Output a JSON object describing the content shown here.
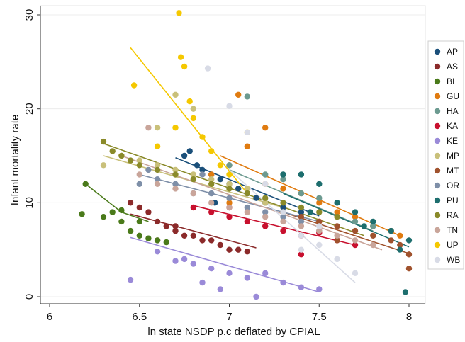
{
  "chart_data": {
    "type": "scatter",
    "xlabel": "ln state NSDP p.c deflated by CPIAL",
    "ylabel": "Infant mortality rate",
    "xlim": [
      5.95,
      8.05
    ],
    "ylim": [
      -1.5,
      31
    ],
    "x_ticks": [
      "6",
      "6.5",
      "7",
      "7.5",
      "8"
    ],
    "y_ticks": [
      "0",
      "10",
      "20",
      "30"
    ],
    "grid": "horizontal",
    "legend_position": "right",
    "series": [
      {
        "name": "AP",
        "color": "#1a4f7a",
        "points": [
          [
            6.75,
            15
          ],
          [
            6.82,
            14
          ],
          [
            6.9,
            13
          ],
          [
            6.95,
            12.5
          ],
          [
            7.0,
            12
          ],
          [
            7.05,
            11.5
          ],
          [
            7.1,
            11
          ],
          [
            7.15,
            10.5
          ],
          [
            6.85,
            13.5
          ],
          [
            7.2,
            10
          ],
          [
            6.78,
            15.5
          ],
          [
            6.92,
            10
          ],
          [
            7.3,
            9.5
          ],
          [
            7.4,
            9
          ]
        ],
        "trend": [
          [
            6.7,
            14.8
          ],
          [
            7.5,
            8.6
          ]
        ]
      },
      {
        "name": "AS",
        "color": "#8b2a2a",
        "points": [
          [
            6.45,
            10
          ],
          [
            6.5,
            9.5
          ],
          [
            6.55,
            9
          ],
          [
            6.6,
            8
          ],
          [
            6.65,
            7.5
          ],
          [
            6.7,
            7
          ],
          [
            6.75,
            6.5
          ],
          [
            6.8,
            6.5
          ],
          [
            6.85,
            6
          ],
          [
            6.9,
            6
          ],
          [
            6.95,
            5.5
          ],
          [
            7.0,
            5
          ],
          [
            7.05,
            5
          ],
          [
            7.1,
            4.8
          ],
          [
            6.6,
            6
          ],
          [
            6.7,
            7.5
          ]
        ],
        "trend": [
          [
            6.45,
            8.8
          ],
          [
            7.15,
            5.2
          ]
        ]
      },
      {
        "name": "BI",
        "color": "#4a7a1a",
        "points": [
          [
            6.18,
            8.8
          ],
          [
            6.2,
            12
          ],
          [
            6.3,
            8.5
          ],
          [
            6.35,
            9
          ],
          [
            6.4,
            8
          ],
          [
            6.45,
            7
          ],
          [
            6.5,
            6.5
          ],
          [
            6.55,
            6.2
          ],
          [
            6.6,
            6
          ],
          [
            6.65,
            5.8
          ],
          [
            6.4,
            9.2
          ],
          [
            6.5,
            8
          ]
        ],
        "trend": [
          [
            6.2,
            12
          ],
          [
            6.4,
            9
          ],
          [
            6.55,
            8
          ]
        ]
      },
      {
        "name": "GU",
        "color": "#e07b10",
        "points": [
          [
            6.9,
            13
          ],
          [
            7.0,
            14
          ],
          [
            7.1,
            16
          ],
          [
            7.2,
            12
          ],
          [
            7.3,
            11.5
          ],
          [
            7.4,
            11
          ],
          [
            7.5,
            10
          ],
          [
            7.6,
            9
          ],
          [
            7.7,
            8.5
          ],
          [
            7.8,
            7.5
          ],
          [
            7.9,
            7
          ],
          [
            7.95,
            6.5
          ],
          [
            7.05,
            21.5
          ],
          [
            7.2,
            18
          ],
          [
            7.0,
            10
          ],
          [
            7.5,
            8
          ]
        ],
        "trend": [
          [
            6.95,
            15
          ],
          [
            7.95,
            6.5
          ]
        ]
      },
      {
        "name": "HA",
        "color": "#6c9a90",
        "points": [
          [
            7.1,
            21.3
          ],
          [
            7.0,
            14
          ],
          [
            7.2,
            13
          ],
          [
            7.3,
            12.5
          ],
          [
            7.4,
            11
          ],
          [
            7.5,
            10.5
          ],
          [
            7.6,
            10
          ],
          [
            7.7,
            8
          ],
          [
            7.8,
            7.5
          ],
          [
            7.3,
            9
          ],
          [
            7.5,
            7
          ]
        ],
        "trend": [
          [
            7.0,
            13.5
          ],
          [
            7.8,
            7
          ]
        ]
      },
      {
        "name": "KA",
        "color": "#c8102e",
        "points": [
          [
            6.8,
            9.5
          ],
          [
            6.9,
            9
          ],
          [
            7.0,
            8.5
          ],
          [
            7.1,
            8
          ],
          [
            7.2,
            7.5
          ],
          [
            7.3,
            7
          ],
          [
            7.4,
            6.5
          ],
          [
            7.5,
            6.8
          ],
          [
            7.6,
            6
          ],
          [
            7.7,
            5.5
          ],
          [
            7.0,
            9.5
          ],
          [
            7.4,
            4.5
          ]
        ],
        "trend": [
          [
            6.8,
            9.7
          ],
          [
            7.7,
            5.5
          ]
        ]
      },
      {
        "name": "KE",
        "color": "#9a8ad8",
        "points": [
          [
            6.45,
            1.8
          ],
          [
            6.6,
            4.8
          ],
          [
            6.7,
            3.8
          ],
          [
            6.8,
            3.5
          ],
          [
            6.85,
            1.5
          ],
          [
            6.9,
            3
          ],
          [
            7.0,
            2.5
          ],
          [
            7.1,
            2
          ],
          [
            7.2,
            2.5
          ],
          [
            7.3,
            1.5
          ],
          [
            7.4,
            1
          ],
          [
            7.5,
            0.8
          ],
          [
            6.75,
            4
          ],
          [
            6.95,
            0.8
          ],
          [
            7.15,
            0
          ]
        ],
        "trend": [
          [
            6.45,
            6.3
          ],
          [
            7.5,
            0.5
          ]
        ]
      },
      {
        "name": "MP",
        "color": "#c9c07a",
        "points": [
          [
            6.3,
            14
          ],
          [
            6.4,
            15
          ],
          [
            6.5,
            14.5
          ],
          [
            6.6,
            14
          ],
          [
            6.7,
            13.5
          ],
          [
            6.8,
            13
          ],
          [
            6.9,
            12.5
          ],
          [
            7.0,
            12
          ],
          [
            7.1,
            11.5
          ],
          [
            7.2,
            10
          ],
          [
            7.3,
            9
          ],
          [
            6.7,
            21.5
          ],
          [
            6.8,
            20
          ],
          [
            6.6,
            18
          ]
        ],
        "trend": [
          [
            6.3,
            15
          ],
          [
            7.3,
            9.5
          ]
        ]
      },
      {
        "name": "MT",
        "color": "#a0522d",
        "points": [
          [
            7.3,
            9
          ],
          [
            7.4,
            8.5
          ],
          [
            7.5,
            8
          ],
          [
            7.6,
            7.5
          ],
          [
            7.7,
            7
          ],
          [
            7.8,
            6.5
          ],
          [
            7.9,
            6
          ],
          [
            8.0,
            4.5
          ],
          [
            8.0,
            3
          ],
          [
            7.95,
            5.5
          ],
          [
            7.6,
            6
          ]
        ],
        "trend": [
          [
            7.3,
            9
          ],
          [
            8.0,
            4.6
          ]
        ]
      },
      {
        "name": "OR",
        "color": "#7e8fa8",
        "points": [
          [
            6.5,
            12
          ],
          [
            6.6,
            12.5
          ],
          [
            6.7,
            12
          ],
          [
            6.8,
            11
          ],
          [
            6.9,
            11
          ],
          [
            7.0,
            10.5
          ],
          [
            7.1,
            9.5
          ],
          [
            7.2,
            9
          ],
          [
            7.3,
            8.5
          ],
          [
            7.4,
            8
          ],
          [
            6.55,
            13.5
          ],
          [
            6.85,
            13
          ]
        ],
        "trend": [
          [
            6.5,
            13
          ],
          [
            7.5,
            8
          ]
        ]
      },
      {
        "name": "PU",
        "color": "#1d6e6e",
        "points": [
          [
            7.4,
            13
          ],
          [
            7.5,
            12
          ],
          [
            7.6,
            10
          ],
          [
            7.7,
            9
          ],
          [
            7.8,
            8
          ],
          [
            7.9,
            7
          ],
          [
            8.0,
            6
          ],
          [
            7.95,
            5
          ],
          [
            7.98,
            0.5
          ],
          [
            7.3,
            13
          ],
          [
            7.45,
            9
          ],
          [
            7.75,
            7.5
          ]
        ],
        "trend": [
          [
            7.3,
            11
          ],
          [
            8.0,
            5.3
          ]
        ]
      },
      {
        "name": "RA",
        "color": "#8a8a2a",
        "points": [
          [
            6.3,
            16.5
          ],
          [
            6.35,
            15.5
          ],
          [
            6.4,
            15
          ],
          [
            6.5,
            14
          ],
          [
            6.6,
            13.5
          ],
          [
            6.7,
            13
          ],
          [
            6.8,
            12.5
          ],
          [
            6.9,
            12
          ],
          [
            7.0,
            11.5
          ],
          [
            7.1,
            11
          ],
          [
            7.2,
            10.5
          ],
          [
            7.3,
            10
          ],
          [
            7.4,
            9.5
          ],
          [
            7.5,
            9
          ],
          [
            7.6,
            8.5
          ],
          [
            6.45,
            14.5
          ]
        ],
        "trend": [
          [
            6.3,
            16.3
          ],
          [
            7.75,
            6.5
          ]
        ]
      },
      {
        "name": "TN",
        "color": "#c9a59a",
        "points": [
          [
            6.5,
            13
          ],
          [
            6.6,
            12
          ],
          [
            6.7,
            11.5
          ],
          [
            6.8,
            11
          ],
          [
            6.9,
            10
          ],
          [
            7.0,
            9.5
          ],
          [
            7.1,
            9
          ],
          [
            7.2,
            8.5
          ],
          [
            7.3,
            8
          ],
          [
            7.4,
            7.5
          ],
          [
            7.5,
            7
          ],
          [
            7.6,
            6.5
          ],
          [
            7.7,
            6
          ],
          [
            7.8,
            5.5
          ],
          [
            6.55,
            18
          ]
        ],
        "trend": [
          [
            6.4,
            15
          ],
          [
            7.85,
            5
          ]
        ]
      },
      {
        "name": "UP",
        "color": "#f5c800",
        "points": [
          [
            6.72,
            30.2
          ],
          [
            6.73,
            25.5
          ],
          [
            6.75,
            24.5
          ],
          [
            6.78,
            20.8
          ],
          [
            6.8,
            19
          ],
          [
            6.85,
            17
          ],
          [
            6.9,
            15.5
          ],
          [
            6.95,
            14
          ],
          [
            7.0,
            13
          ],
          [
            6.47,
            22.5
          ],
          [
            6.6,
            16
          ],
          [
            7.1,
            17.5
          ],
          [
            6.7,
            18
          ]
        ],
        "trend": [
          [
            6.45,
            26.5
          ],
          [
            7.1,
            11
          ]
        ]
      },
      {
        "name": "WB",
        "color": "#d8dbe6",
        "points": [
          [
            6.88,
            24.3
          ],
          [
            7.0,
            20.3
          ],
          [
            7.1,
            17.5
          ],
          [
            7.2,
            12
          ],
          [
            7.3,
            9
          ],
          [
            7.4,
            6.5
          ],
          [
            7.5,
            5.5
          ],
          [
            7.6,
            4
          ],
          [
            7.7,
            2.5
          ],
          [
            7.5,
            7.5
          ],
          [
            7.4,
            5
          ]
        ],
        "trend": [
          [
            7.0,
            13.5
          ],
          [
            7.7,
            1.5
          ]
        ]
      }
    ]
  }
}
